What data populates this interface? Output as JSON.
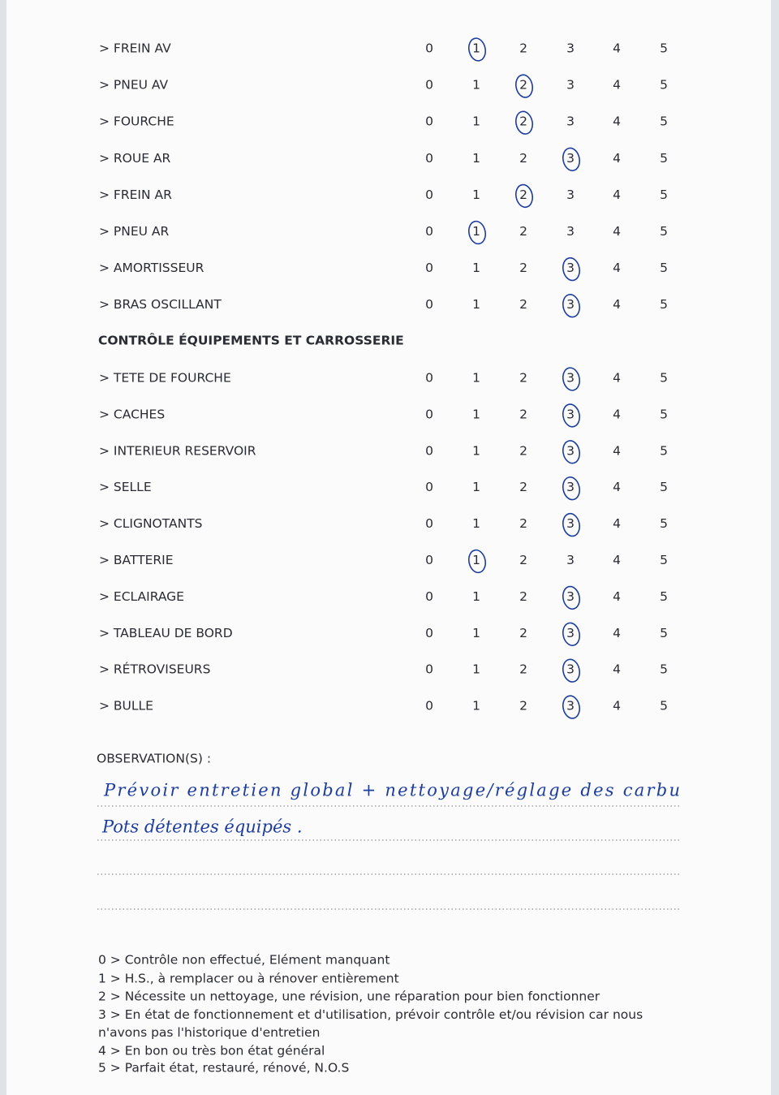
{
  "sections": [
    {
      "rows": [
        {
          "label": "> FREIN AV",
          "rating": 1
        },
        {
          "label": "> PNEU AV",
          "rating": 2
        },
        {
          "label": "> FOURCHE",
          "rating": 2
        },
        {
          "label": "> ROUE AR",
          "rating": 3
        },
        {
          "label": "> FREIN AR",
          "rating": 2
        },
        {
          "label": "> PNEU AR",
          "rating": 1
        },
        {
          "label": "> AMORTISSEUR",
          "rating": 3
        },
        {
          "label": "> BRAS OSCILLANT",
          "rating": 3
        }
      ]
    },
    {
      "title": "CONTRÔLE ÉQUIPEMENTS ET CARROSSERIE",
      "rows": [
        {
          "label": "> TETE DE FOURCHE",
          "rating": 3
        },
        {
          "label": "> CACHES",
          "rating": 3
        },
        {
          "label": "> INTERIEUR RESERVOIR",
          "rating": 3
        },
        {
          "label": "> SELLE",
          "rating": 3
        },
        {
          "label": "> CLIGNOTANTS",
          "rating": 3
        },
        {
          "label": "> BATTERIE",
          "rating": 1
        },
        {
          "label": "> ECLAIRAGE",
          "rating": 3
        },
        {
          "label": "> TABLEAU DE BORD",
          "rating": 3
        },
        {
          "label": "> RÉTROVISEURS",
          "rating": 3
        },
        {
          "label": "> BULLE",
          "rating": 3
        }
      ]
    }
  ],
  "scale": [
    0,
    1,
    2,
    3,
    4,
    5
  ],
  "observations": {
    "label": "OBSERVATION(S) :",
    "lines": [
      "Prévoir entretien global + nettoyage/réglage des carbu",
      "Pots détentes équipés ."
    ]
  },
  "legend": [
    "0 > Contrôle non effectué, Elément manquant",
    "1 > H.S., à remplacer ou à rénover entièrement",
    "2 > Nécessite un nettoyage, une révision, une réparation pour bien fonctionner",
    "3 > En état de fonctionnement et d'utilisation, prévoir contrôle et/ou révision car nous n'avons pas l'historique d'entretien",
    "4 > En bon ou très bon état général",
    "5 > Parfait état, restauré, rénové, N.O.S"
  ]
}
